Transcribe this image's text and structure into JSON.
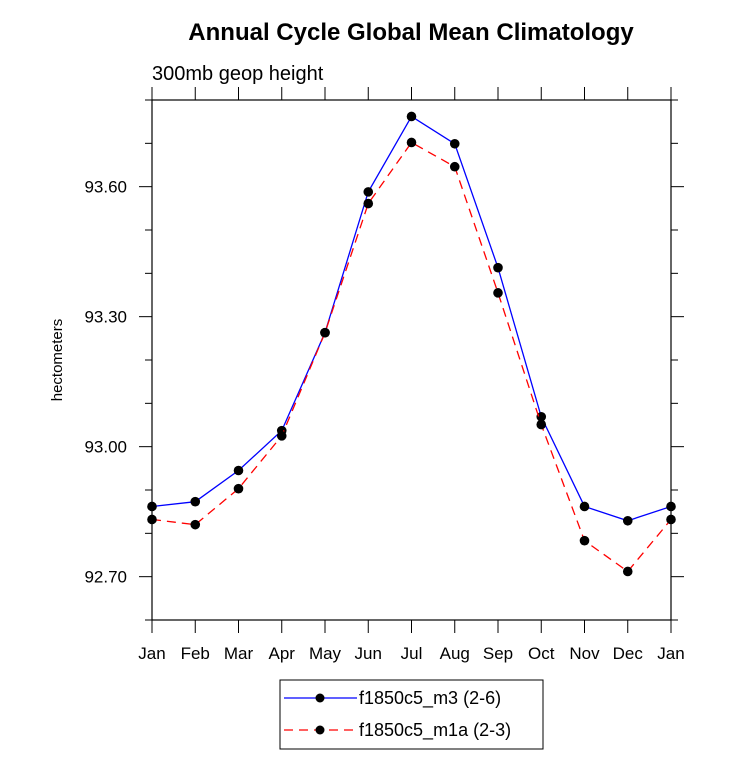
{
  "chart_data": {
    "type": "line",
    "title": "Annual Cycle Global Mean Climatology",
    "subtitle": "300mb geop height",
    "xlabel": "",
    "ylabel": "hectometers",
    "categories": [
      "Jan",
      "Feb",
      "Mar",
      "Apr",
      "May",
      "Jun",
      "Jul",
      "Aug",
      "Sep",
      "Oct",
      "Nov",
      "Dec",
      "Jan"
    ],
    "ylim": [
      92.6,
      93.8
    ],
    "yticks_major": [
      92.7,
      93.0,
      93.3,
      93.6
    ],
    "ytick_labels": [
      "92.70",
      "93.00",
      "93.30",
      "93.60"
    ],
    "yticks_minor_step": 0.1,
    "grid": false,
    "legend_position": "bottom-center",
    "series": [
      {
        "name": "f1850c5_m3 (2-6)",
        "color": "#0000ff",
        "line_style": "solid",
        "marker": "filled-circle",
        "values": [
          92.862,
          92.873,
          92.945,
          93.037,
          93.263,
          93.588,
          93.762,
          93.699,
          93.413,
          93.069,
          92.862,
          92.829,
          92.862
        ]
      },
      {
        "name": "f1850c5_m1a (2-3)",
        "color": "#ff0000",
        "line_style": "dashed",
        "marker": "filled-circle",
        "values": [
          92.832,
          92.82,
          92.903,
          93.025,
          93.263,
          93.561,
          93.702,
          93.646,
          93.355,
          93.051,
          92.783,
          92.712,
          92.832
        ]
      }
    ]
  }
}
